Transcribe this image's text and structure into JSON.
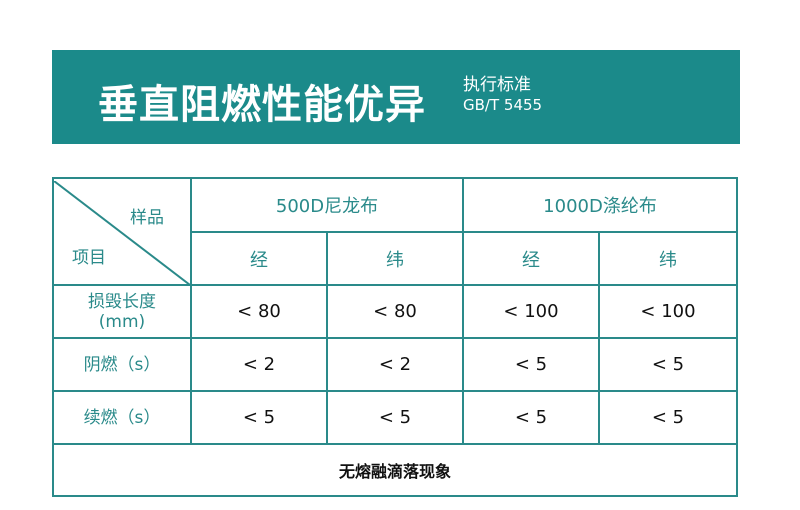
{
  "banner": {
    "title": "垂直阻燃性能优异",
    "standard_label": "执行标准",
    "standard_code": "GB/T 5455",
    "color": "#1b8a8a"
  },
  "table": {
    "corner": {
      "top": "样品",
      "bottom": "项目"
    },
    "groups": [
      "500D尼龙布",
      "1000D涤纶布"
    ],
    "subheaders": [
      "经",
      "纬",
      "经",
      "纬"
    ],
    "rows": [
      {
        "label": "损毁长度",
        "unit": "(mm)",
        "values": [
          "< 80",
          "< 80",
          "< 100",
          "< 100"
        ]
      },
      {
        "label": "阴燃（s）",
        "unit": "",
        "values": [
          "< 2",
          "< 2",
          "< 5",
          "< 5"
        ]
      },
      {
        "label": "续燃（s）",
        "unit": "",
        "values": [
          "< 5",
          "< 5",
          "< 5",
          "< 5"
        ]
      }
    ],
    "footer": "无熔融滴落现象"
  }
}
